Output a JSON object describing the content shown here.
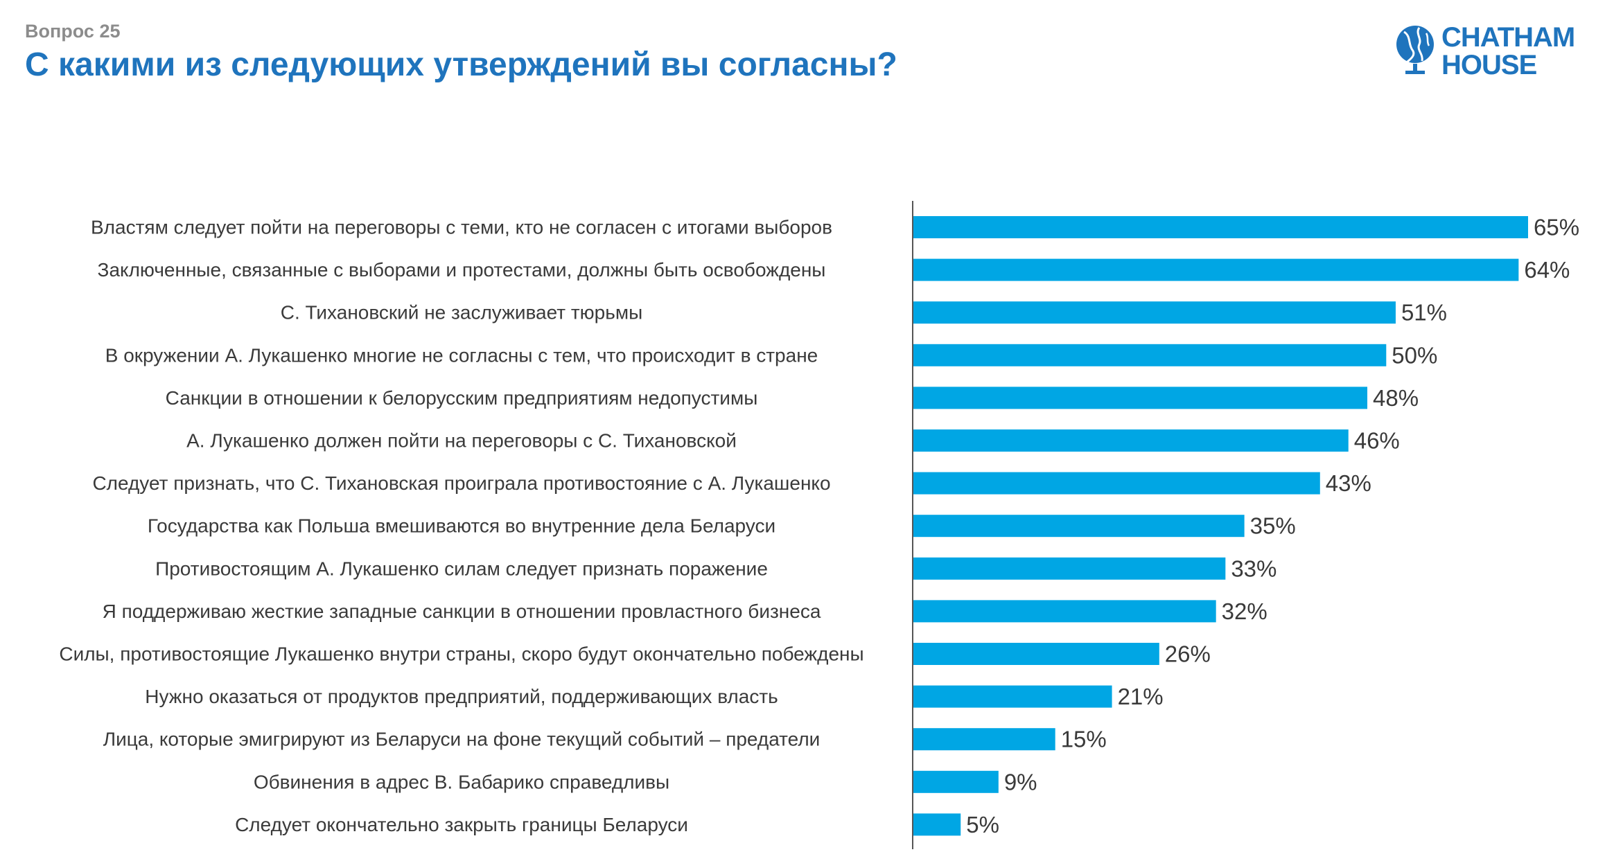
{
  "header": {
    "question_label": "Вопрос 25",
    "title": "С какими из следующих утверждений вы согласны?"
  },
  "logo": {
    "line1": "CHATHAM",
    "line2": "HOUSE",
    "icon": "globe-icon",
    "color": "#1f74bd"
  },
  "chart_data": {
    "type": "bar",
    "orientation": "horizontal",
    "bar_color": "#00a6e4",
    "value_suffix": "%",
    "xlim": [
      0,
      65
    ],
    "grid": false,
    "legend": "none",
    "categories": [
      "Властям следует пойти на переговоры с теми, кто не согласен с итогами выборов",
      "Заключенные, связанные с выборами и протестами, должны быть освобождены",
      "С. Тихановский не заслуживает тюрьмы",
      "В окружении А. Лукашенко многие не согласны с тем, что происходит в стране",
      "Санкции в отношении к белорусским предприятиям недопустимы",
      "А. Лукашенко должен пойти на переговоры с С. Тихановской",
      "Следует признать, что С. Тихановская проиграла противостояние с А. Лукашенко",
      "Государства как Польша вмешиваются во внутренние дела Беларуси",
      "Противостоящим А. Лукашенко силам следует признать поражение",
      "Я поддерживаю жесткие западные санкции в отношении провластного бизнеса",
      "Силы, противостоящие Лукашенко внутри страны, скоро будут окончательно побеждены",
      "Нужно оказаться от продуктов предприятий, поддерживающих власть",
      "Лица, которые эмигрируют из Беларуси на фоне текущий событий – предатели",
      "Обвинения в адрес В. Бабарико справедливы",
      "Следует окончательно закрыть границы Беларуси"
    ],
    "values": [
      65,
      64,
      51,
      50,
      48,
      46,
      43,
      35,
      33,
      32,
      26,
      21,
      15,
      9,
      5
    ]
  }
}
